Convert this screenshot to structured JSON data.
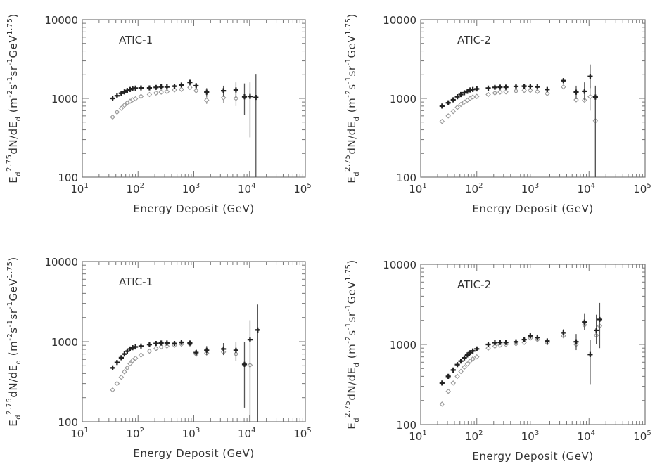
{
  "chart_data": [
    {
      "type": "scatter",
      "panel_label": "ATIC-1",
      "xlabel": "Energy Deposit (GeV)",
      "ylabel_parts": {
        "base": "E",
        "sub": "d",
        "sup": "2.75",
        "mid": "dN/dE",
        "sub2": "d",
        "unit_open": " (m",
        "e1": "-2",
        "s": "s",
        "e2": "-1",
        "sr": "sr",
        "e3": "-1",
        "gev": "GeV",
        "e4": "1.75",
        "unit_close": ")"
      },
      "x_scale": "log",
      "y_scale": "log",
      "xlim": [
        10,
        100000
      ],
      "ylim": [
        100,
        10000
      ],
      "x_ticks": [
        {
          "b": "10",
          "e": "1",
          "v": 10
        },
        {
          "b": "10",
          "e": "2",
          "v": 100
        },
        {
          "b": "10",
          "e": "3",
          "v": 1000
        },
        {
          "b": "10",
          "e": "4",
          "v": 10000
        },
        {
          "b": "10",
          "e": "5",
          "v": 100000
        }
      ],
      "y_ticks": [
        {
          "t": "10000",
          "v": 10000
        },
        {
          "t": "1000",
          "v": 1000
        },
        {
          "t": "100",
          "v": 100
        }
      ],
      "series": [
        {
          "marker": "filled-star",
          "points": [
            {
              "x": 35,
              "y": 1000
            },
            {
              "x": 42,
              "y": 1080
            },
            {
              "x": 50,
              "y": 1160
            },
            {
              "x": 57,
              "y": 1210
            },
            {
              "x": 64,
              "y": 1260
            },
            {
              "x": 72,
              "y": 1300
            },
            {
              "x": 80,
              "y": 1330
            },
            {
              "x": 90,
              "y": 1350
            },
            {
              "x": 113,
              "y": 1360
            },
            {
              "x": 160,
              "y": 1360
            },
            {
              "x": 210,
              "y": 1380
            },
            {
              "x": 260,
              "y": 1400
            },
            {
              "x": 330,
              "y": 1400
            },
            {
              "x": 450,
              "y": 1430
            },
            {
              "x": 600,
              "y": 1480
            },
            {
              "x": 850,
              "y": 1600,
              "lo": 1500,
              "hi": 1700
            },
            {
              "x": 1100,
              "y": 1450,
              "lo": 1320,
              "hi": 1560
            },
            {
              "x": 1700,
              "y": 1200,
              "lo": 1050,
              "hi": 1350
            },
            {
              "x": 3400,
              "y": 1250,
              "lo": 1050,
              "hi": 1450
            },
            {
              "x": 5700,
              "y": 1280,
              "lo": 1000,
              "hi": 1600
            },
            {
              "x": 8100,
              "y": 1050,
              "lo": 620,
              "hi": 1550
            },
            {
              "x": 10200,
              "y": 1060,
              "lo": 320,
              "hi": 1600
            },
            {
              "x": 13000,
              "y": 1030,
              "lo": 100,
              "hi": 2050
            }
          ]
        },
        {
          "marker": "open-diamond",
          "points": [
            {
              "x": 35,
              "y": 580
            },
            {
              "x": 42,
              "y": 670
            },
            {
              "x": 50,
              "y": 750
            },
            {
              "x": 57,
              "y": 820
            },
            {
              "x": 64,
              "y": 880
            },
            {
              "x": 72,
              "y": 920
            },
            {
              "x": 80,
              "y": 960
            },
            {
              "x": 90,
              "y": 990
            },
            {
              "x": 113,
              "y": 1060
            },
            {
              "x": 160,
              "y": 1120
            },
            {
              "x": 210,
              "y": 1170
            },
            {
              "x": 260,
              "y": 1200
            },
            {
              "x": 330,
              "y": 1220
            },
            {
              "x": 450,
              "y": 1280
            },
            {
              "x": 600,
              "y": 1300
            },
            {
              "x": 850,
              "y": 1380
            },
            {
              "x": 1100,
              "y": 1250
            },
            {
              "x": 1700,
              "y": 950,
              "lo": 850,
              "hi": 1050
            },
            {
              "x": 3400,
              "y": 1020,
              "lo": 880,
              "hi": 1170
            },
            {
              "x": 5700,
              "y": 1000,
              "lo": 800,
              "hi": 1250
            }
          ]
        }
      ]
    },
    {
      "type": "scatter",
      "panel_label": "ATIC-2",
      "xlabel": "Energy Deposit (GeV)",
      "x_scale": "log",
      "y_scale": "log",
      "xlim": [
        10,
        100000
      ],
      "ylim": [
        100,
        10000
      ],
      "series": [
        {
          "marker": "filled-star",
          "points": [
            {
              "x": 24,
              "y": 800
            },
            {
              "x": 31,
              "y": 880
            },
            {
              "x": 38,
              "y": 960
            },
            {
              "x": 45,
              "y": 1050
            },
            {
              "x": 52,
              "y": 1120
            },
            {
              "x": 60,
              "y": 1180
            },
            {
              "x": 68,
              "y": 1230
            },
            {
              "x": 76,
              "y": 1280
            },
            {
              "x": 85,
              "y": 1300
            },
            {
              "x": 100,
              "y": 1320
            },
            {
              "x": 160,
              "y": 1350
            },
            {
              "x": 210,
              "y": 1380
            },
            {
              "x": 260,
              "y": 1390
            },
            {
              "x": 330,
              "y": 1390
            },
            {
              "x": 500,
              "y": 1420
            },
            {
              "x": 700,
              "y": 1430
            },
            {
              "x": 900,
              "y": 1420
            },
            {
              "x": 1200,
              "y": 1400
            },
            {
              "x": 1800,
              "y": 1300
            },
            {
              "x": 3500,
              "y": 1680,
              "lo": 1550,
              "hi": 1800
            },
            {
              "x": 5900,
              "y": 1200,
              "lo": 980,
              "hi": 1450
            },
            {
              "x": 8300,
              "y": 1230,
              "lo": 950,
              "hi": 1600
            },
            {
              "x": 10500,
              "y": 1900,
              "lo": 1350,
              "hi": 2700
            },
            {
              "x": 13000,
              "y": 1040,
              "lo": 100,
              "hi": 1450
            }
          ]
        },
        {
          "marker": "open-diamond",
          "points": [
            {
              "x": 24,
              "y": 510
            },
            {
              "x": 31,
              "y": 600
            },
            {
              "x": 38,
              "y": 680
            },
            {
              "x": 45,
              "y": 770
            },
            {
              "x": 52,
              "y": 840
            },
            {
              "x": 60,
              "y": 900
            },
            {
              "x": 68,
              "y": 950
            },
            {
              "x": 76,
              "y": 1000
            },
            {
              "x": 85,
              "y": 1040
            },
            {
              "x": 100,
              "y": 1060
            },
            {
              "x": 160,
              "y": 1120
            },
            {
              "x": 210,
              "y": 1170
            },
            {
              "x": 260,
              "y": 1200
            },
            {
              "x": 330,
              "y": 1210
            },
            {
              "x": 500,
              "y": 1240
            },
            {
              "x": 700,
              "y": 1260
            },
            {
              "x": 900,
              "y": 1260
            },
            {
              "x": 1200,
              "y": 1220
            },
            {
              "x": 1800,
              "y": 1150
            },
            {
              "x": 3500,
              "y": 1400
            },
            {
              "x": 5900,
              "y": 960
            },
            {
              "x": 8300,
              "y": 950
            },
            {
              "x": 10500,
              "y": 1050,
              "lo": 700,
              "hi": 1450
            },
            {
              "x": 13000,
              "y": 520,
              "lo": 100,
              "hi": 950
            }
          ]
        }
      ]
    },
    {
      "type": "scatter",
      "panel_label": "ATIC-1",
      "xlabel": "Energy Deposit (GeV)",
      "x_scale": "log",
      "y_scale": "log",
      "xlim": [
        10,
        100000
      ],
      "ylim": [
        100,
        10000
      ],
      "series": [
        {
          "marker": "filled-star",
          "points": [
            {
              "x": 35,
              "y": 470
            },
            {
              "x": 42,
              "y": 550
            },
            {
              "x": 50,
              "y": 630
            },
            {
              "x": 57,
              "y": 700
            },
            {
              "x": 64,
              "y": 760
            },
            {
              "x": 72,
              "y": 810
            },
            {
              "x": 80,
              "y": 840
            },
            {
              "x": 90,
              "y": 860
            },
            {
              "x": 113,
              "y": 880
            },
            {
              "x": 160,
              "y": 920
            },
            {
              "x": 210,
              "y": 950
            },
            {
              "x": 260,
              "y": 960
            },
            {
              "x": 330,
              "y": 960
            },
            {
              "x": 450,
              "y": 950
            },
            {
              "x": 600,
              "y": 980
            },
            {
              "x": 850,
              "y": 960
            },
            {
              "x": 1100,
              "y": 730,
              "lo": 650,
              "hi": 800
            },
            {
              "x": 1700,
              "y": 780,
              "lo": 680,
              "hi": 880
            },
            {
              "x": 3400,
              "y": 810,
              "lo": 680,
              "hi": 960
            },
            {
              "x": 5700,
              "y": 780,
              "lo": 580,
              "hi": 1000
            },
            {
              "x": 8100,
              "y": 520,
              "lo": 150,
              "hi": 1000
            },
            {
              "x": 10200,
              "y": 1060,
              "lo": 100,
              "hi": 1850
            },
            {
              "x": 14000,
              "y": 1400,
              "lo": 100,
              "hi": 2900
            }
          ]
        },
        {
          "marker": "open-diamond",
          "points": [
            {
              "x": 35,
              "y": 250
            },
            {
              "x": 42,
              "y": 300
            },
            {
              "x": 50,
              "y": 360
            },
            {
              "x": 57,
              "y": 420
            },
            {
              "x": 64,
              "y": 470
            },
            {
              "x": 72,
              "y": 530
            },
            {
              "x": 80,
              "y": 580
            },
            {
              "x": 90,
              "y": 620
            },
            {
              "x": 113,
              "y": 680
            },
            {
              "x": 160,
              "y": 760
            },
            {
              "x": 210,
              "y": 820
            },
            {
              "x": 260,
              "y": 860
            },
            {
              "x": 330,
              "y": 880
            },
            {
              "x": 450,
              "y": 900
            },
            {
              "x": 600,
              "y": 930
            },
            {
              "x": 850,
              "y": 930
            },
            {
              "x": 1100,
              "y": 700
            },
            {
              "x": 1700,
              "y": 720
            },
            {
              "x": 3400,
              "y": 740
            },
            {
              "x": 5700,
              "y": 700
            },
            {
              "x": 10200,
              "y": 510
            }
          ]
        }
      ]
    },
    {
      "type": "scatter",
      "panel_label": "ATIC-2",
      "xlabel": "Energy Deposit (GeV)",
      "x_scale": "log",
      "y_scale": "log",
      "xlim": [
        10,
        100000
      ],
      "ylim": [
        100,
        10000
      ],
      "series": [
        {
          "marker": "filled-star",
          "points": [
            {
              "x": 24,
              "y": 330
            },
            {
              "x": 31,
              "y": 400
            },
            {
              "x": 38,
              "y": 480
            },
            {
              "x": 45,
              "y": 560
            },
            {
              "x": 52,
              "y": 620
            },
            {
              "x": 60,
              "y": 680
            },
            {
              "x": 68,
              "y": 740
            },
            {
              "x": 76,
              "y": 790
            },
            {
              "x": 85,
              "y": 830
            },
            {
              "x": 100,
              "y": 880
            },
            {
              "x": 160,
              "y": 1000
            },
            {
              "x": 210,
              "y": 1050
            },
            {
              "x": 260,
              "y": 1060
            },
            {
              "x": 330,
              "y": 1060
            },
            {
              "x": 500,
              "y": 1080
            },
            {
              "x": 700,
              "y": 1150
            },
            {
              "x": 900,
              "y": 1280,
              "lo": 1180,
              "hi": 1380
            },
            {
              "x": 1200,
              "y": 1220,
              "lo": 1100,
              "hi": 1330
            },
            {
              "x": 1800,
              "y": 1100,
              "lo": 980,
              "hi": 1200
            },
            {
              "x": 3500,
              "y": 1400,
              "lo": 1250,
              "hi": 1550
            },
            {
              "x": 5900,
              "y": 1080,
              "lo": 850,
              "hi": 1350
            },
            {
              "x": 8300,
              "y": 1900,
              "lo": 1500,
              "hi": 2450
            },
            {
              "x": 10500,
              "y": 750,
              "lo": 320,
              "hi": 1150
            },
            {
              "x": 13500,
              "y": 1500,
              "lo": 1000,
              "hi": 2350
            },
            {
              "x": 15500,
              "y": 2050,
              "lo": 900,
              "hi": 3300
            }
          ]
        },
        {
          "marker": "open-diamond",
          "points": [
            {
              "x": 24,
              "y": 180
            },
            {
              "x": 31,
              "y": 260
            },
            {
              "x": 38,
              "y": 330
            },
            {
              "x": 45,
              "y": 400
            },
            {
              "x": 52,
              "y": 460
            },
            {
              "x": 60,
              "y": 520
            },
            {
              "x": 68,
              "y": 570
            },
            {
              "x": 76,
              "y": 620
            },
            {
              "x": 85,
              "y": 660
            },
            {
              "x": 100,
              "y": 700
            },
            {
              "x": 160,
              "y": 900
            },
            {
              "x": 210,
              "y": 950
            },
            {
              "x": 260,
              "y": 980
            },
            {
              "x": 330,
              "y": 1000
            },
            {
              "x": 500,
              "y": 1020
            },
            {
              "x": 700,
              "y": 1060
            },
            {
              "x": 900,
              "y": 1200
            },
            {
              "x": 1200,
              "y": 1150
            },
            {
              "x": 1800,
              "y": 1050
            },
            {
              "x": 3500,
              "y": 1280
            },
            {
              "x": 5900,
              "y": 1000
            },
            {
              "x": 8300,
              "y": 1750
            },
            {
              "x": 13500,
              "y": 1300
            },
            {
              "x": 15500,
              "y": 1700
            }
          ]
        }
      ]
    }
  ]
}
